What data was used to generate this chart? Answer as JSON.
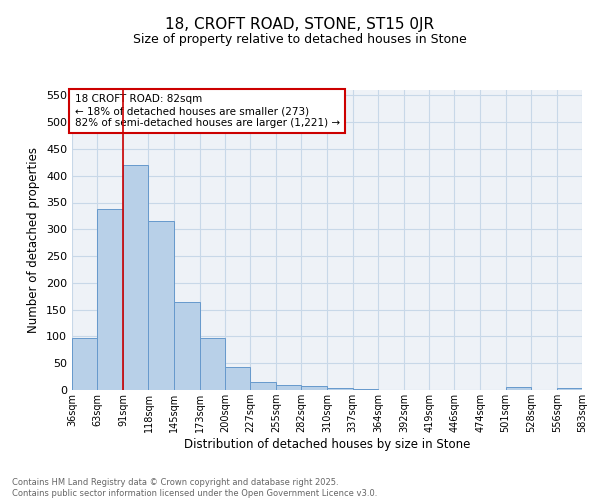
{
  "title1": "18, CROFT ROAD, STONE, ST15 0JR",
  "title2": "Size of property relative to detached houses in Stone",
  "xlabel": "Distribution of detached houses by size in Stone",
  "ylabel": "Number of detached properties",
  "bar_edges": [
    36,
    63,
    91,
    118,
    145,
    173,
    200,
    227,
    255,
    282,
    310,
    337,
    364,
    392,
    419,
    446,
    474,
    501,
    528,
    556,
    583
  ],
  "bar_heights": [
    98,
    338,
    420,
    315,
    164,
    97,
    43,
    15,
    10,
    8,
    3,
    1,
    0,
    0,
    0,
    0,
    0,
    5,
    0,
    4
  ],
  "bar_color": "#b8d0e8",
  "bar_edge_color": "#6699cc",
  "vline_x": 91,
  "annotation_text": "18 CROFT ROAD: 82sqm\n← 18% of detached houses are smaller (273)\n82% of semi-detached houses are larger (1,221) →",
  "annotation_box_color": "#ffffff",
  "annotation_box_edge_color": "#cc0000",
  "annotation_fontsize": 7.5,
  "vline_color": "#cc0000",
  "ylim": [
    0,
    560
  ],
  "yticks": [
    0,
    50,
    100,
    150,
    200,
    250,
    300,
    350,
    400,
    450,
    500,
    550
  ],
  "grid_color": "#c8d8e8",
  "background_color": "#eef2f7",
  "footer_text": "Contains HM Land Registry data © Crown copyright and database right 2025.\nContains public sector information licensed under the Open Government Licence v3.0.",
  "tick_labels": [
    "36sqm",
    "63sqm",
    "91sqm",
    "118sqm",
    "145sqm",
    "173sqm",
    "200sqm",
    "227sqm",
    "255sqm",
    "282sqm",
    "310sqm",
    "337sqm",
    "364sqm",
    "392sqm",
    "419sqm",
    "446sqm",
    "474sqm",
    "501sqm",
    "528sqm",
    "556sqm",
    "583sqm"
  ],
  "title1_fontsize": 11,
  "title2_fontsize": 9,
  "ylabel_fontsize": 8.5,
  "xlabel_fontsize": 8.5,
  "ytick_fontsize": 8,
  "xtick_fontsize": 7
}
